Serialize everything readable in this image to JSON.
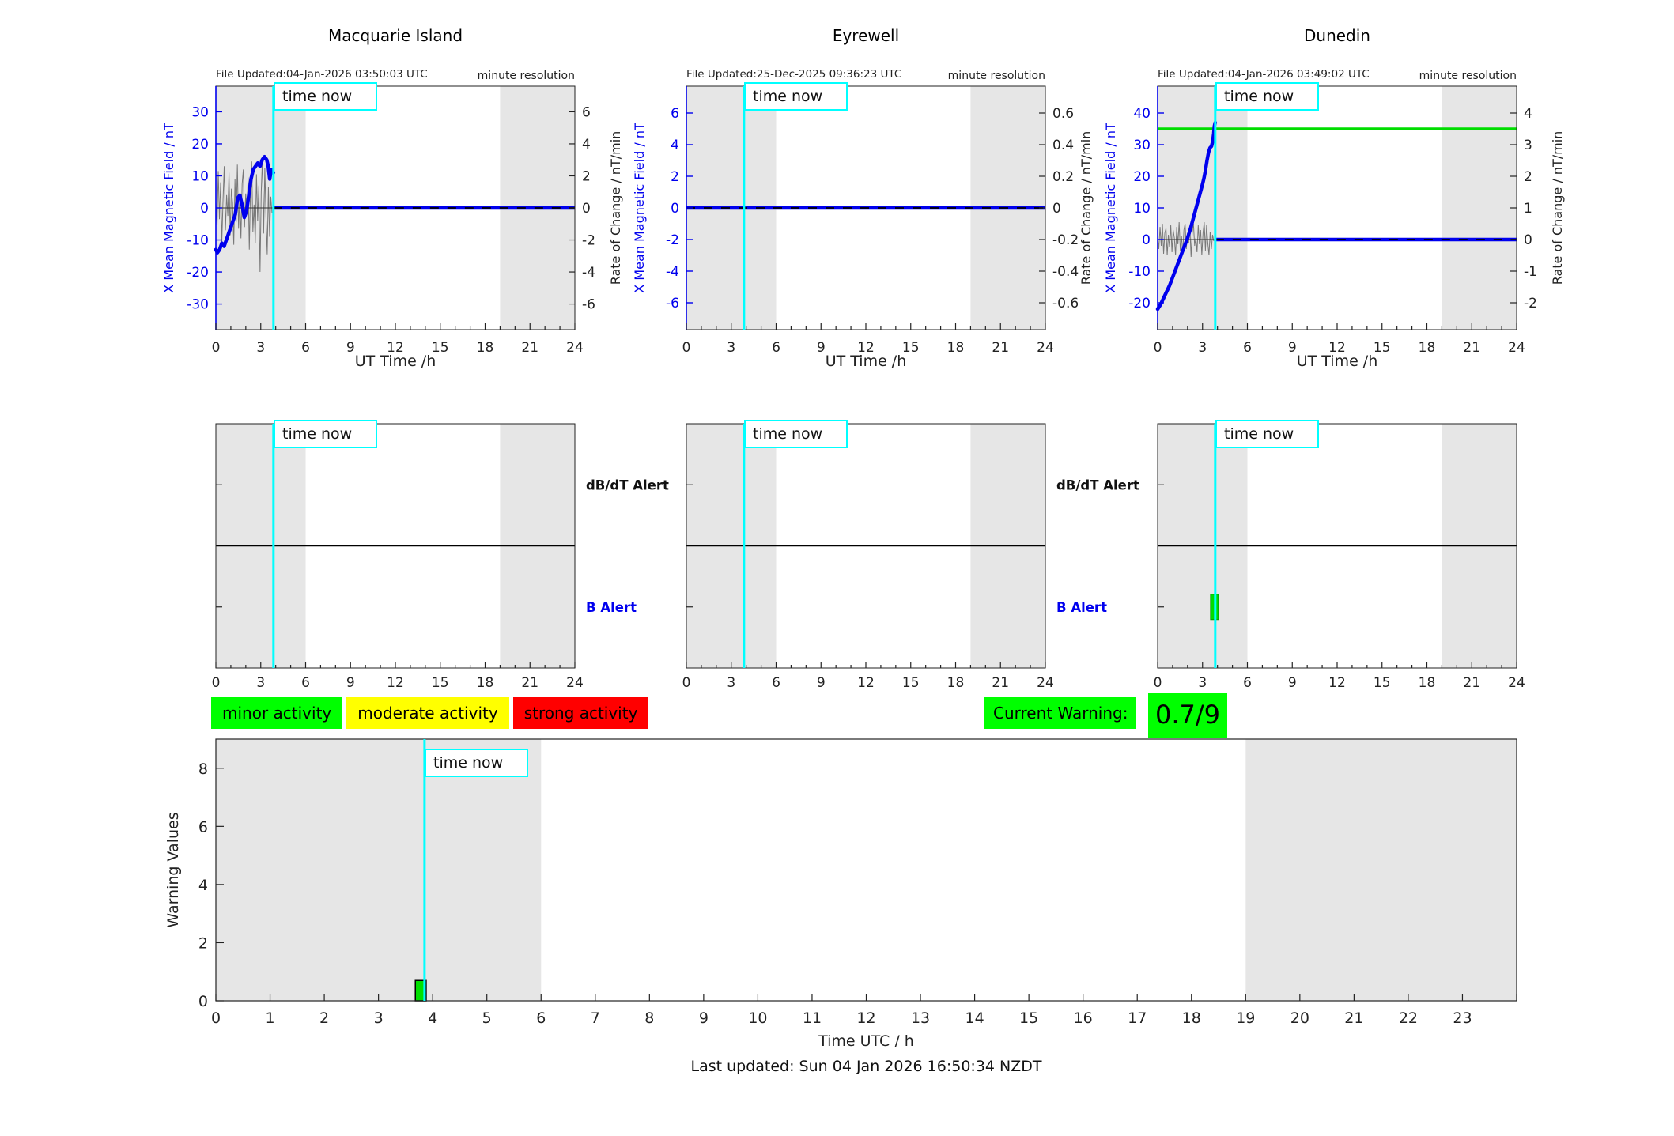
{
  "labels": {
    "time_now": "time now"
  },
  "legend": {
    "items": [
      {
        "label": "minor activity",
        "color": "#00ff00"
      },
      {
        "label": "moderate activity",
        "color": "#ffff00"
      },
      {
        "label": "strong activity",
        "color": "#ff0000"
      }
    ]
  },
  "current_warning": {
    "label": "Current Warning:",
    "value": "0.7/9",
    "color": "#00ff00"
  },
  "footer": {
    "last_updated": "Last updated: Sun 04 Jan 2026 16:50:34 NZDT"
  },
  "chart_data": {
    "colors": {
      "blue": "#0000ee",
      "axis_blue": "#0000ee",
      "cyan": "#00ffff",
      "green": "#00dd00",
      "band": "#e6e6e6",
      "noise": "#787878",
      "bar_green": "#00e000"
    },
    "panels": [
      {
        "id": "macquarie",
        "type": "line",
        "title": "Macquarie Island",
        "file_updated": "File Updated:04-Jan-2026 03:50:03 UTC",
        "resolution_note": "minute resolution",
        "xlabel": "UT Time /h",
        "xlim": [
          0,
          24
        ],
        "x_ticks": [
          0,
          3,
          6,
          9,
          12,
          15,
          18,
          21,
          24
        ],
        "shaded_x": [
          [
            0,
            6
          ],
          [
            19,
            24
          ]
        ],
        "time_now": 3.85,
        "green_hline": null,
        "left_axis": {
          "label": "X Mean Magnetic Field / nT",
          "ticks": [
            30,
            20,
            10,
            0,
            -10,
            -20,
            -30
          ],
          "lim": [
            -38,
            38
          ]
        },
        "right_axis": {
          "label": "Rate of Change / nT/min",
          "ticks": [
            6,
            4,
            2,
            0,
            -2,
            -4,
            -6
          ],
          "lim": [
            -7.6,
            7.6
          ]
        },
        "series": [
          {
            "name": "rate-of-change-noise",
            "axis": "right",
            "style": "noise",
            "x0": 0,
            "dx": 0.0798,
            "values": [
              0.4,
              -1.1,
              2.3,
              -0.7,
              1.6,
              -2.1,
              0.5,
              2.6,
              -1.4,
              0.8,
              -0.5,
              2.2,
              -1.7,
              1.2,
              0.3,
              -2.3,
              1.8,
              -0.9,
              2.7,
              -1.3,
              0.6,
              -1.9,
              1.5,
              2.4,
              -1.2,
              0.9,
              -0.4,
              1.9,
              -2.6,
              1.1,
              2.9,
              -1.5,
              0.2,
              -2.2,
              2.1,
              -0.8,
              1.4,
              -4.0,
              1.0,
              3.1,
              -1.6,
              2.5,
              -0.6,
              -2.9,
              1.3,
              -1.8,
              0.7,
              -0.3
            ]
          },
          {
            "name": "zero-baseline",
            "axis": "left",
            "style": "thin",
            "x": [
              0,
              3.85
            ],
            "values": [
              0,
              0
            ]
          },
          {
            "name": "x-mean-field",
            "axis": "left",
            "style": "main",
            "x": [
              0,
              0.1,
              0.25,
              0.4,
              0.55,
              0.7,
              0.85,
              1.0,
              1.15,
              1.3,
              1.45,
              1.6,
              1.75,
              1.9,
              2.05,
              2.2,
              2.35,
              2.5,
              2.65,
              2.8,
              2.95,
              3.1,
              3.25,
              3.4,
              3.5,
              3.6,
              3.7,
              3.85
            ],
            "values": [
              -13,
              -14,
              -13,
              -11,
              -12,
              -10,
              -8,
              -6,
              -4,
              -2,
              3,
              4,
              1,
              -3,
              -1,
              4,
              9,
              12,
              13,
              14,
              13,
              15,
              16,
              15,
              13,
              9,
              12,
              11
            ]
          },
          {
            "name": "future-flat",
            "axis": "left",
            "style": "forecast",
            "x": [
              3.85,
              24
            ],
            "values": [
              0,
              0
            ]
          }
        ]
      },
      {
        "id": "eyrewell",
        "type": "line",
        "title": "Eyrewell",
        "file_updated": "File Updated:25-Dec-2025 09:36:23 UTC",
        "resolution_note": "minute resolution",
        "xlabel": "UT Time /h",
        "xlim": [
          0,
          24
        ],
        "x_ticks": [
          0,
          3,
          6,
          9,
          12,
          15,
          18,
          21,
          24
        ],
        "shaded_x": [
          [
            0,
            6
          ],
          [
            19,
            24
          ]
        ],
        "time_now": 3.85,
        "green_hline": null,
        "left_axis": {
          "label": "X Mean Magnetic Field / nT",
          "ticks": [
            6,
            4,
            2,
            0,
            -2,
            -4,
            -6
          ],
          "lim": [
            -7.7,
            7.7
          ]
        },
        "right_axis": {
          "label": "Rate of Change / nT/min",
          "ticks": [
            0.6,
            0.4,
            0.2,
            0,
            -0.2,
            -0.4,
            -0.6
          ],
          "lim": [
            -0.77,
            0.77
          ]
        },
        "series": [
          {
            "name": "flat-line",
            "axis": "left",
            "style": "forecast",
            "x": [
              0,
              24
            ],
            "values": [
              0,
              0
            ]
          }
        ]
      },
      {
        "id": "dunedin",
        "type": "line",
        "title": "Dunedin",
        "file_updated": "File Updated:04-Jan-2026 03:49:02 UTC",
        "resolution_note": "minute resolution",
        "xlabel": "UT Time /h",
        "xlim": [
          0,
          24
        ],
        "x_ticks": [
          0,
          3,
          6,
          9,
          12,
          15,
          18,
          21,
          24
        ],
        "shaded_x": [
          [
            0,
            6
          ],
          [
            19,
            24
          ]
        ],
        "time_now": 3.85,
        "green_hline": 35,
        "left_axis": {
          "label": "X Mean Magnetic Field / nT",
          "ticks": [
            40,
            30,
            20,
            10,
            0,
            -10,
            -20
          ],
          "lim": [
            -28.5,
            48.5
          ]
        },
        "right_axis": {
          "label": "Rate of Change / nT/min",
          "ticks": [
            4,
            3,
            2,
            1,
            0,
            -1,
            -2
          ],
          "lim": [
            -2.85,
            4.85
          ]
        },
        "series": [
          {
            "name": "rate-of-change-noise",
            "axis": "right",
            "style": "noise",
            "x0": 0,
            "dx": 0.0798,
            "values": [
              0.1,
              -0.3,
              0.4,
              -0.2,
              0.5,
              -0.45,
              0.2,
              0.35,
              -0.5,
              0.15,
              -0.25,
              0.45,
              -0.4,
              0.3,
              0.05,
              -0.5,
              0.4,
              -0.15,
              0.55,
              -0.35,
              0.1,
              -0.45,
              0.3,
              0.5,
              -0.3,
              0.2,
              -0.1,
              0.4,
              -0.55,
              0.25,
              0.5,
              -0.2,
              0.05,
              -0.4,
              0.45,
              -0.15,
              0.3,
              -0.5,
              0.2,
              0.55,
              -0.35,
              0.45,
              -0.1,
              -0.5,
              0.25,
              -0.3,
              0.15,
              -0.05
            ]
          },
          {
            "name": "zero-baseline",
            "axis": "left",
            "style": "thin",
            "x": [
              0,
              3.85
            ],
            "values": [
              0,
              0
            ]
          },
          {
            "name": "x-mean-field",
            "axis": "left",
            "style": "main",
            "x": [
              0,
              0.2,
              0.4,
              0.6,
              0.8,
              1.0,
              1.2,
              1.4,
              1.6,
              1.8,
              2.0,
              2.2,
              2.4,
              2.6,
              2.8,
              3.0,
              3.1,
              3.2,
              3.3,
              3.4,
              3.5,
              3.6,
              3.68,
              3.75,
              3.8,
              3.85
            ],
            "values": [
              -22,
              -20.5,
              -18.5,
              -16.5,
              -14.5,
              -12,
              -9.5,
              -7,
              -4.5,
              -2,
              0.5,
              3.5,
              7,
              10.5,
              14,
              17.5,
              19.5,
              22,
              25,
              27.5,
              29,
              29.5,
              31,
              33.5,
              36,
              37
            ]
          },
          {
            "name": "future-flat",
            "axis": "left",
            "style": "forecast",
            "x": [
              3.85,
              24
            ],
            "values": [
              0,
              0
            ]
          }
        ]
      }
    ],
    "alert_panels": [
      {
        "id": "macquarie-alert",
        "x_ticks": [
          0,
          3,
          6,
          9,
          12,
          15,
          18,
          21,
          24
        ],
        "shaded_x": [
          [
            0,
            6
          ],
          [
            19,
            24
          ]
        ],
        "time_now": 3.85,
        "labels": {
          "top": "dB/dT Alert",
          "bottom": "B Alert"
        },
        "show_labels": true,
        "bars": []
      },
      {
        "id": "eyrewell-alert",
        "x_ticks": [
          0,
          3,
          6,
          9,
          12,
          15,
          18,
          21,
          24
        ],
        "shaded_x": [
          [
            0,
            6
          ],
          [
            19,
            24
          ]
        ],
        "time_now": 3.85,
        "labels": {
          "top": "dB/dT Alert",
          "bottom": "B Alert"
        },
        "show_labels": true,
        "bars": []
      },
      {
        "id": "dunedin-alert",
        "x_ticks": [
          0,
          3,
          6,
          9,
          12,
          15,
          18,
          21,
          24
        ],
        "shaded_x": [
          [
            0,
            6
          ],
          [
            19,
            24
          ]
        ],
        "time_now": 3.85,
        "labels": {
          "top": "dB/dT Alert",
          "bottom": "B Alert"
        },
        "show_labels": false,
        "bars": [
          {
            "x": 3.8,
            "level": "bottom",
            "color": "#00dd00"
          }
        ]
      }
    ],
    "warning_chart": {
      "type": "bar",
      "ylabel": "Warning Values",
      "xlabel": "Time UTC / h",
      "ylim": [
        0,
        9
      ],
      "yticks": [
        0,
        2,
        4,
        6,
        8
      ],
      "xticks": [
        0,
        1,
        2,
        3,
        4,
        5,
        6,
        7,
        8,
        9,
        10,
        11,
        12,
        13,
        14,
        15,
        16,
        17,
        18,
        19,
        20,
        21,
        22,
        23
      ],
      "xlim": [
        0,
        24
      ],
      "shaded_x": [
        [
          0,
          6
        ],
        [
          19,
          24
        ]
      ],
      "time_now": 3.85,
      "bars": [
        {
          "x": 3.78,
          "width_h": 0.2,
          "value": 0.7,
          "color": "#00e000"
        }
      ]
    }
  }
}
